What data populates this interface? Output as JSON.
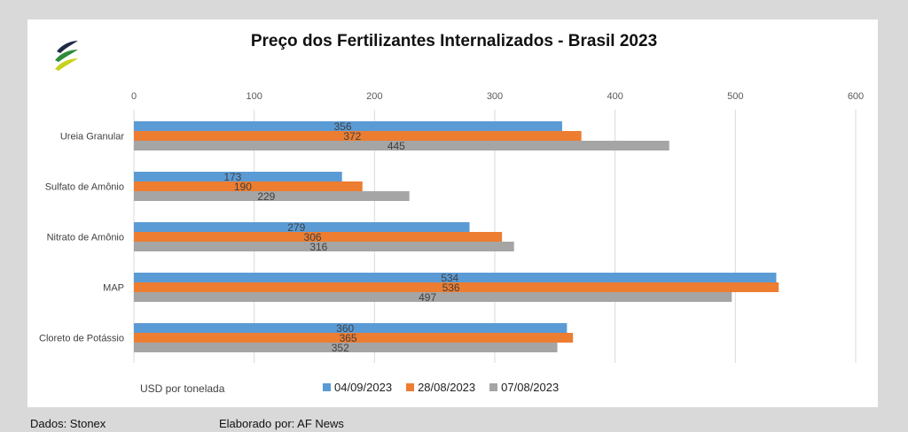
{
  "colors": {
    "series1": "#5b9bd5",
    "series2": "#ed7d31",
    "series3": "#a5a5a5",
    "grid": "#d9d9d9"
  },
  "chart_data": {
    "type": "bar",
    "orientation": "horizontal",
    "title": "Preço dos Fertilizantes Internalizados - Brasil 2023",
    "xlabel": "USD por tonelada",
    "xlim": [
      0,
      600
    ],
    "xticks": [
      0,
      100,
      200,
      300,
      400,
      500,
      600
    ],
    "tick_position": "top",
    "grid": true,
    "legend_position": "bottom",
    "categories": [
      "Ureia Granular",
      "Sulfato de Amônio",
      "Nitrato de Amônio",
      "MAP",
      "Cloreto de Potássio"
    ],
    "series": [
      {
        "name": "04/09/2023",
        "values": [
          356,
          173,
          279,
          534,
          360
        ]
      },
      {
        "name": "28/08/2023",
        "values": [
          372,
          190,
          306,
          536,
          365
        ]
      },
      {
        "name": "07/08/2023",
        "values": [
          445,
          229,
          316,
          497,
          352
        ]
      }
    ]
  },
  "footer": {
    "source": "Dados: Stonex",
    "credit": "Elaborado por: AF News"
  }
}
